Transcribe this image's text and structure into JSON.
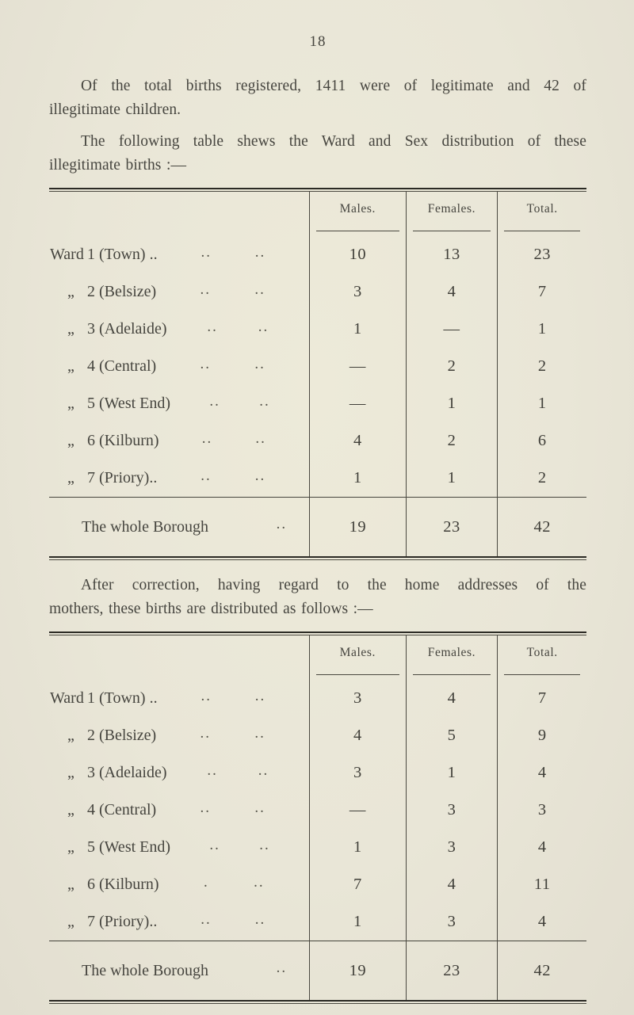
{
  "page": {
    "number": "18"
  },
  "colors": {
    "paper": "#e9e6d7",
    "ink": "#46453f",
    "rule": "#38372f",
    "rule_heavy": "#2b2a24"
  },
  "paragraphs": {
    "intro": {
      "lines": [
        "Of the total births registered, 1411 were of legitimate and 42 of",
        "illegitimate children."
      ]
    },
    "table1_lead": {
      "lines": [
        "The following table shews the Ward and Sex distribution of these",
        "illegitimate births :—"
      ]
    },
    "table2_lead": {
      "lines": [
        "After correction, having regard to the home addresses of the",
        "mothers, these births are distributed as follows :—"
      ]
    }
  },
  "tables": [
    {
      "id": "registered-by-ward",
      "columns": [
        "Males.",
        "Females.",
        "Total."
      ],
      "rows": [
        {
          "prefix": "Ward",
          "label": "1 (Town) ..",
          "dots": [
            "..",
            ".."
          ],
          "values": [
            "10",
            "13",
            "23"
          ]
        },
        {
          "prefix": "„",
          "label": "2 (Belsize)",
          "dots": [
            "..",
            ".."
          ],
          "values": [
            "3",
            "4",
            "7"
          ]
        },
        {
          "prefix": "„",
          "label": "3 (Adelaide)",
          "dots": [
            "..",
            ".."
          ],
          "values": [
            "1",
            "—",
            "1"
          ]
        },
        {
          "prefix": "„",
          "label": "4 (Central)",
          "dots": [
            "..",
            ".."
          ],
          "values": [
            "—",
            "2",
            "2"
          ]
        },
        {
          "prefix": "„",
          "label": "5 (West End)",
          "dots": [
            "..",
            ".."
          ],
          "values": [
            "—",
            "1",
            "1"
          ]
        },
        {
          "prefix": "„",
          "label": "6 (Kilburn)",
          "dots": [
            "..",
            ".."
          ],
          "values": [
            "4",
            "2",
            "6"
          ]
        },
        {
          "prefix": "„",
          "label": "7 (Priory)..",
          "dots": [
            "..",
            ".."
          ],
          "values": [
            "1",
            "1",
            "2"
          ]
        }
      ],
      "total": {
        "label": "The whole Borough",
        "dots": [
          ".."
        ],
        "values": [
          "19",
          "23",
          "42"
        ]
      }
    },
    {
      "id": "corrected-by-home-address",
      "columns": [
        "Males.",
        "Females.",
        "Total."
      ],
      "rows": [
        {
          "prefix": "Ward",
          "label": "1 (Town) ..",
          "dots": [
            "..",
            ".."
          ],
          "values": [
            "3",
            "4",
            "7"
          ]
        },
        {
          "prefix": "„",
          "label": "2 (Belsize)",
          "dots": [
            "..",
            ".."
          ],
          "values": [
            "4",
            "5",
            "9"
          ]
        },
        {
          "prefix": "„",
          "label": "3 (Adelaide)",
          "dots": [
            "..",
            ".."
          ],
          "values": [
            "3",
            "1",
            "4"
          ]
        },
        {
          "prefix": "„",
          "label": "4 (Central)",
          "dots": [
            "..",
            ".."
          ],
          "values": [
            "—",
            "3",
            "3"
          ]
        },
        {
          "prefix": "„",
          "label": "5 (West End)",
          "dots": [
            "..",
            ".."
          ],
          "values": [
            "1",
            "3",
            "4"
          ]
        },
        {
          "prefix": "„",
          "label": "6 (Kilburn)",
          "dots": [
            ".",
            ".."
          ],
          "values": [
            "7",
            "4",
            "11"
          ]
        },
        {
          "prefix": "„",
          "label": "7 (Priory)..",
          "dots": [
            "..",
            ".."
          ],
          "values": [
            "1",
            "3",
            "4"
          ]
        }
      ],
      "total": {
        "label": "The whole Borough",
        "dots": [
          ".."
        ],
        "values": [
          "19",
          "23",
          "42"
        ]
      }
    }
  ]
}
